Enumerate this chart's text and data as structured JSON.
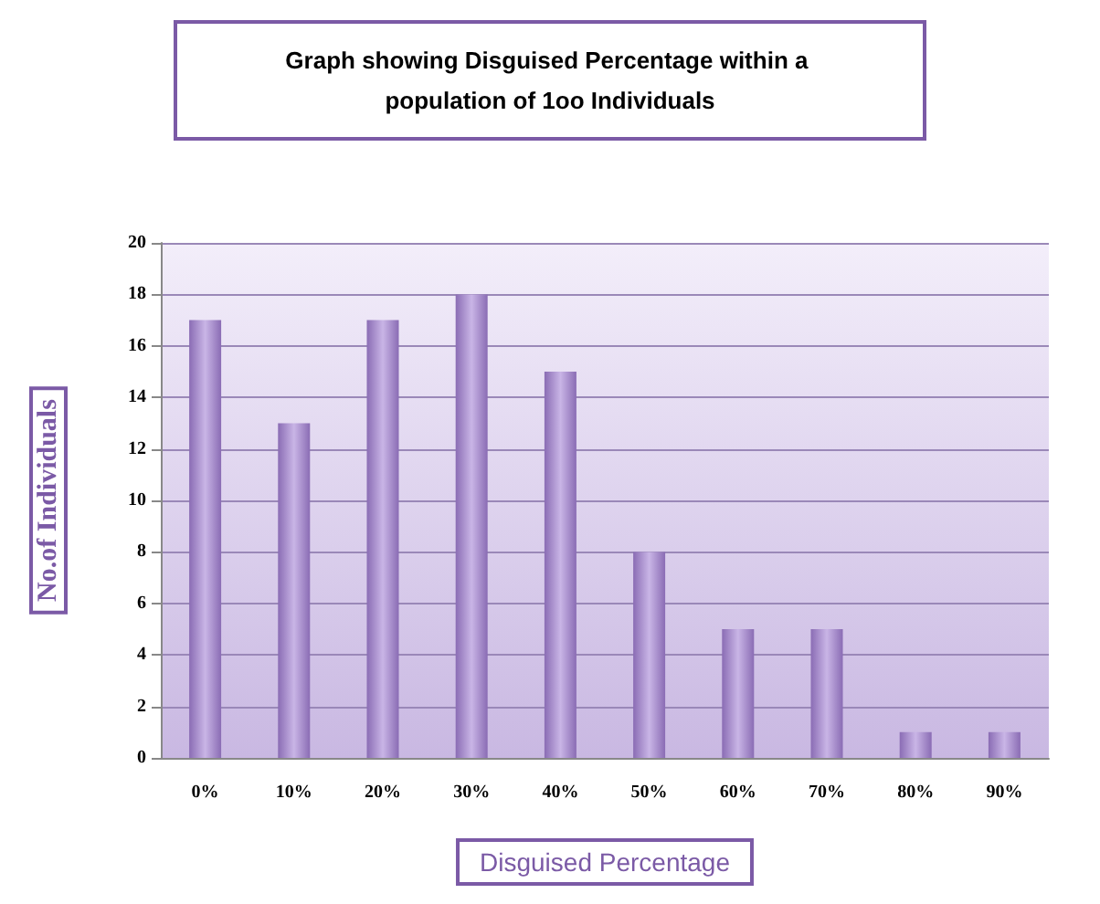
{
  "chart_data": {
    "type": "bar",
    "title": "Graph showing Disguised Percentage within a population of 1oo Individuals",
    "xlabel": "Disguised Percentage",
    "ylabel": "No.of Individuals",
    "categories": [
      "0%",
      "10%",
      "20%",
      "30%",
      "40%",
      "50%",
      "60%",
      "70%",
      "80%",
      "90%"
    ],
    "values": [
      17,
      13,
      17,
      18,
      15,
      8,
      5,
      5,
      1,
      1
    ],
    "color": "#8a6cb4",
    "ylim": [
      0,
      20
    ],
    "yticks": [
      0,
      2,
      4,
      6,
      8,
      10,
      12,
      14,
      16,
      18,
      20
    ],
    "grid": "y"
  }
}
